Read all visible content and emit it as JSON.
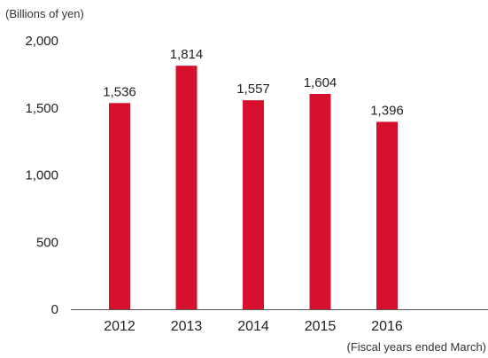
{
  "chart_data": {
    "type": "bar",
    "unit_label": "(Billions of yen)",
    "x_caption": "(Fiscal years ended March)",
    "categories": [
      "2012",
      "2013",
      "2014",
      "2015",
      "2016"
    ],
    "values": [
      1536,
      1814,
      1557,
      1604,
      1396
    ],
    "data_labels": [
      "1,536",
      "1,814",
      "1,557",
      "1,604",
      "1,396"
    ],
    "y_ticks": [
      0,
      500,
      1000,
      1500,
      2000
    ],
    "y_tick_labels": [
      "0",
      "500",
      "1,000",
      "1,500",
      "2,000"
    ],
    "ylim": [
      0,
      2000
    ],
    "grid": false,
    "legend": "none",
    "colors": {
      "bar": "#d7102e",
      "axis": "#555555"
    }
  }
}
